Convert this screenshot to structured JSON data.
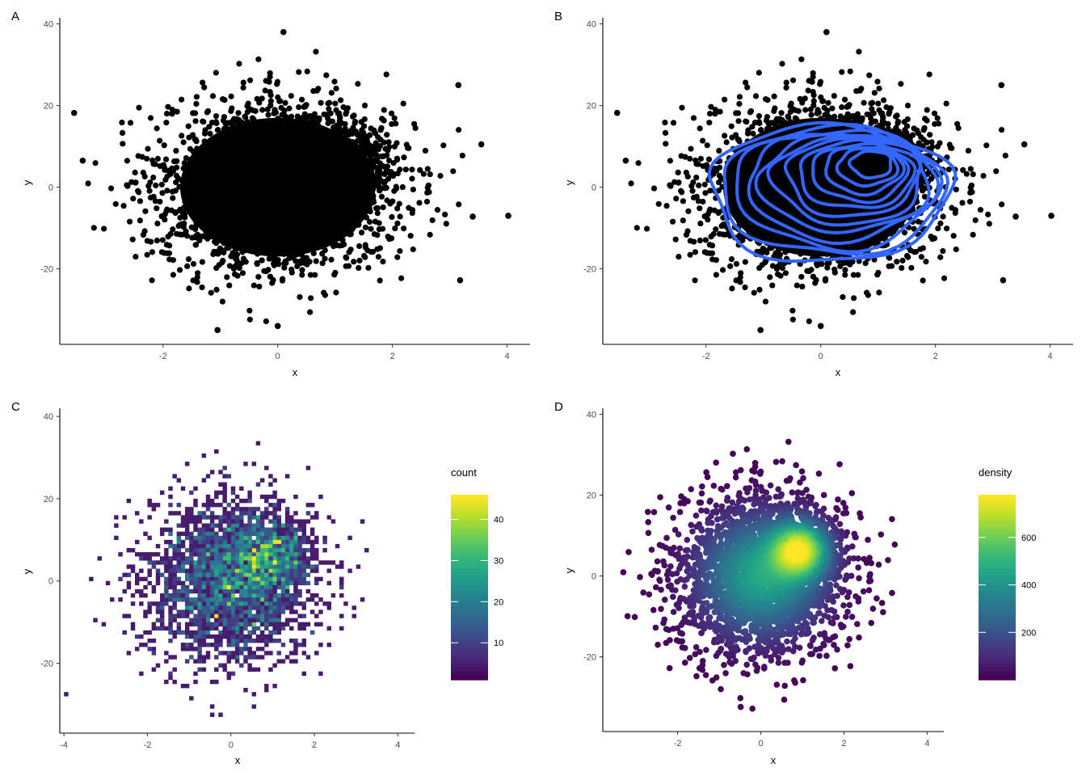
{
  "colors": {
    "points": "#000000",
    "contour": "#3366ff",
    "viridis": [
      "#440154",
      "#482878",
      "#3e4a89",
      "#31688e",
      "#26828e",
      "#1f9e89",
      "#35b779",
      "#6ece58",
      "#b5de2b",
      "#fde725"
    ]
  },
  "chart_data": [
    {
      "type": "scatter",
      "tag": "A",
      "xlabel": "x",
      "ylabel": "y",
      "xlim": [
        -3.8,
        4.4
      ],
      "ylim": [
        -38.5,
        41.5
      ],
      "xticks": [
        -2,
        0,
        2,
        4
      ],
      "yticks": [
        -20,
        0,
        20,
        40
      ],
      "xtick_labels": [
        "-2",
        "0",
        "2",
        "4"
      ],
      "ytick_labels": [
        "-20",
        "0",
        "20",
        "40"
      ],
      "distribution": {
        "x_mean": 0.0,
        "x_sd": 1.0,
        "y_mean": 0.0,
        "y_sd": 10.0,
        "n": 10000
      },
      "outliers": [
        [
          -3.55,
          18.2
        ],
        [
          4.02,
          -7.0
        ],
        [
          3.55,
          10.5
        ],
        [
          3.15,
          25.0
        ],
        [
          3.18,
          -22.8
        ],
        [
          -1.05,
          -35.0
        ],
        [
          0.1,
          38.0
        ],
        [
          0.0,
          -34.0
        ],
        [
          -3.4,
          6.5
        ],
        [
          3.4,
          -7.2
        ]
      ]
    },
    {
      "type": "scatter",
      "tag": "B",
      "overlay": "density_contour",
      "xlabel": "x",
      "ylabel": "y",
      "xlim": [
        -3.8,
        4.4
      ],
      "ylim": [
        -38.5,
        41.5
      ],
      "xticks": [
        -2,
        0,
        2,
        4
      ],
      "yticks": [
        -20,
        0,
        20,
        40
      ],
      "xtick_labels": [
        "-2",
        "0",
        "2",
        "4"
      ],
      "ytick_labels": [
        "-20",
        "0",
        "20",
        "40"
      ],
      "distribution": {
        "x_mean": 0.0,
        "x_sd": 1.0,
        "y_mean": 0.0,
        "y_sd": 10.0,
        "n": 10000
      },
      "outliers": [
        [
          -3.55,
          18.2
        ],
        [
          4.02,
          -7.0
        ],
        [
          3.55,
          10.5
        ],
        [
          3.15,
          25.0
        ],
        [
          3.18,
          -22.8
        ],
        [
          -1.05,
          -35.0
        ],
        [
          0.1,
          38.0
        ],
        [
          0.0,
          -34.0
        ],
        [
          -3.4,
          6.5
        ],
        [
          3.4,
          -7.2
        ]
      ],
      "contour_peak": [
        0.95,
        6.5
      ],
      "contour_levels": 12
    },
    {
      "type": "heatmap",
      "subtype": "bin2d",
      "tag": "C",
      "xlabel": "x",
      "ylabel": "y",
      "xlim": [
        -4.1,
        4.4
      ],
      "ylim": [
        -37,
        42
      ],
      "xticks": [
        -4,
        -2,
        0,
        2,
        4
      ],
      "yticks": [
        -20,
        0,
        20,
        40
      ],
      "xtick_labels": [
        "-4",
        "-2",
        "0",
        "2",
        "4"
      ],
      "ytick_labels": [
        "-20",
        "0",
        "20",
        "40"
      ],
      "bins": 80,
      "hotspot": [
        0.95,
        6.5
      ],
      "fill_range": [
        1,
        46
      ],
      "legend": {
        "title": "count",
        "ticks": [
          10,
          20,
          30,
          40
        ],
        "tick_labels": [
          "10",
          "20",
          "30",
          "40"
        ],
        "range": [
          1,
          46
        ],
        "position": "right"
      }
    },
    {
      "type": "scatter",
      "subtype": "density-colored",
      "tag": "D",
      "xlabel": "x",
      "ylabel": "y",
      "xlim": [
        -3.8,
        4.4
      ],
      "ylim": [
        -38.5,
        41.5
      ],
      "xticks": [
        -2,
        0,
        2,
        4
      ],
      "yticks": [
        -20,
        0,
        20,
        40
      ],
      "xtick_labels": [
        "-2",
        "0",
        "2",
        "4"
      ],
      "ytick_labels": [
        "-20",
        "0",
        "20",
        "40"
      ],
      "distribution": {
        "x_mean": 0.0,
        "x_sd": 1.0,
        "y_mean": 0.0,
        "y_sd": 10.0,
        "n": 10000
      },
      "hotspot": [
        0.95,
        6.5
      ],
      "legend": {
        "title": "density",
        "ticks": [
          200,
          400,
          600
        ],
        "tick_labels": [
          "200",
          "400",
          "600"
        ],
        "range": [
          0,
          780
        ],
        "position": "right"
      }
    }
  ]
}
